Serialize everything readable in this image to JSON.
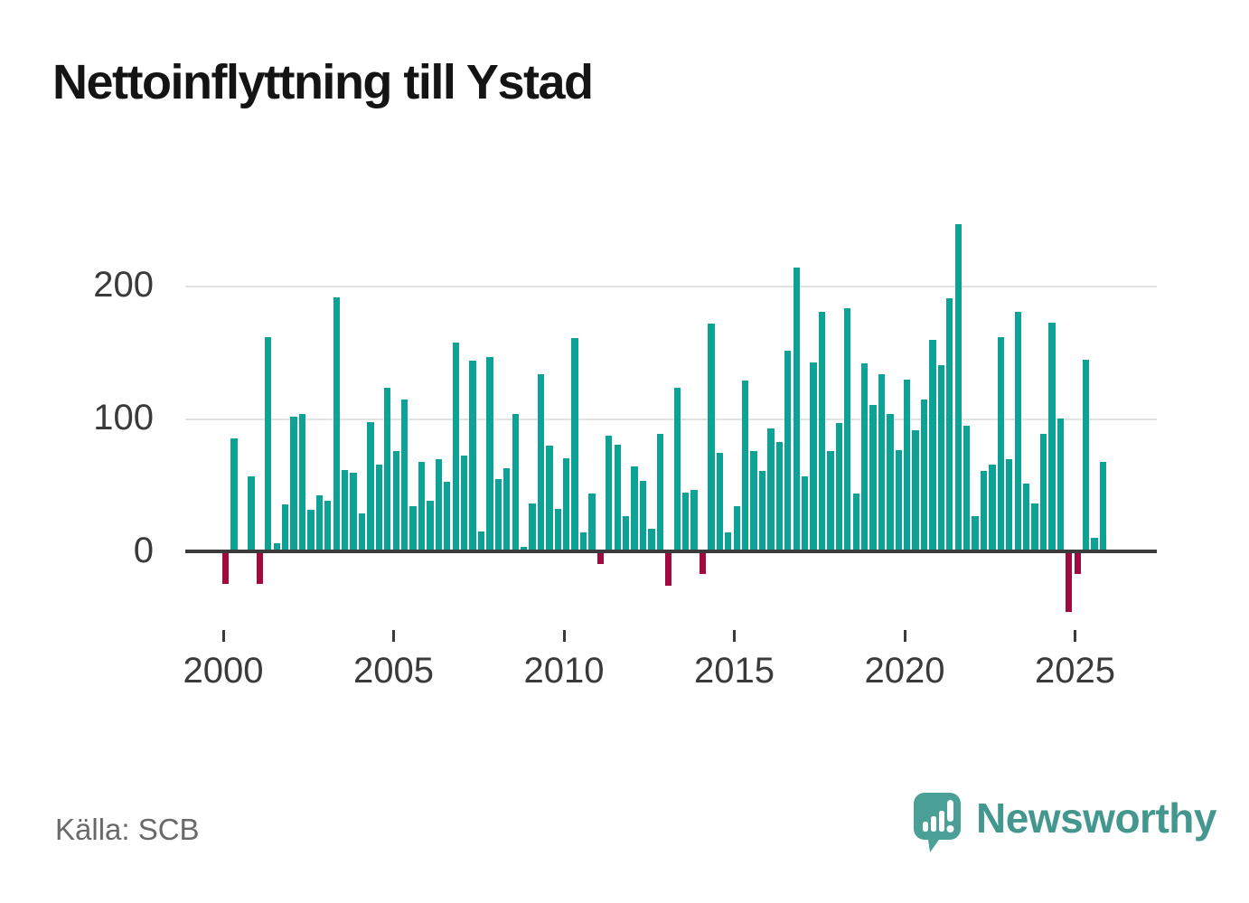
{
  "header": {
    "title": "Nettoinflyttning till Ystad"
  },
  "source": {
    "label": "Källa: SCB"
  },
  "branding": {
    "name": "Newsworthy",
    "logo_icon": "speech-bubble-bar-chart-icon"
  },
  "colors": {
    "positive_bar": "#0ca295",
    "negative_bar": "#a00a3e",
    "axis": "#3b3b3b",
    "grid": "#e2e2e2",
    "tick_text": "#3a3a3a",
    "source_text": "#696969",
    "brand_teal": "#44978e"
  },
  "chart_data": {
    "type": "bar",
    "title": "Nettoinflyttning till Ystad",
    "ylabel": "",
    "xlabel": "",
    "frequency": "quarterly",
    "start_year": 2000,
    "x_tick_years": [
      2000,
      2005,
      2010,
      2015,
      2020,
      2025
    ],
    "y_ticks": [
      0,
      100,
      200
    ],
    "ylim": [
      -60,
      265
    ],
    "grid": "horizontal-only",
    "legend": "none",
    "values": [
      -24,
      86,
      1,
      57,
      -24,
      162,
      7,
      36,
      102,
      104,
      32,
      43,
      39,
      192,
      62,
      60,
      29,
      98,
      66,
      124,
      76,
      115,
      35,
      68,
      39,
      70,
      53,
      158,
      73,
      144,
      16,
      147,
      55,
      63,
      104,
      4,
      37,
      134,
      80,
      33,
      71,
      161,
      15,
      44,
      -9,
      88,
      81,
      27,
      65,
      54,
      18,
      89,
      -25,
      124,
      45,
      47,
      -16,
      172,
      75,
      15,
      35,
      129,
      76,
      61,
      93,
      83,
      152,
      214,
      57,
      143,
      181,
      76,
      97,
      184,
      44,
      142,
      111,
      134,
      104,
      77,
      130,
      92,
      115,
      160,
      141,
      191,
      247,
      95,
      27,
      61,
      66,
      162,
      70,
      181,
      52,
      37,
      89,
      173,
      101,
      -45,
      -16,
      145,
      11,
      68
    ]
  }
}
